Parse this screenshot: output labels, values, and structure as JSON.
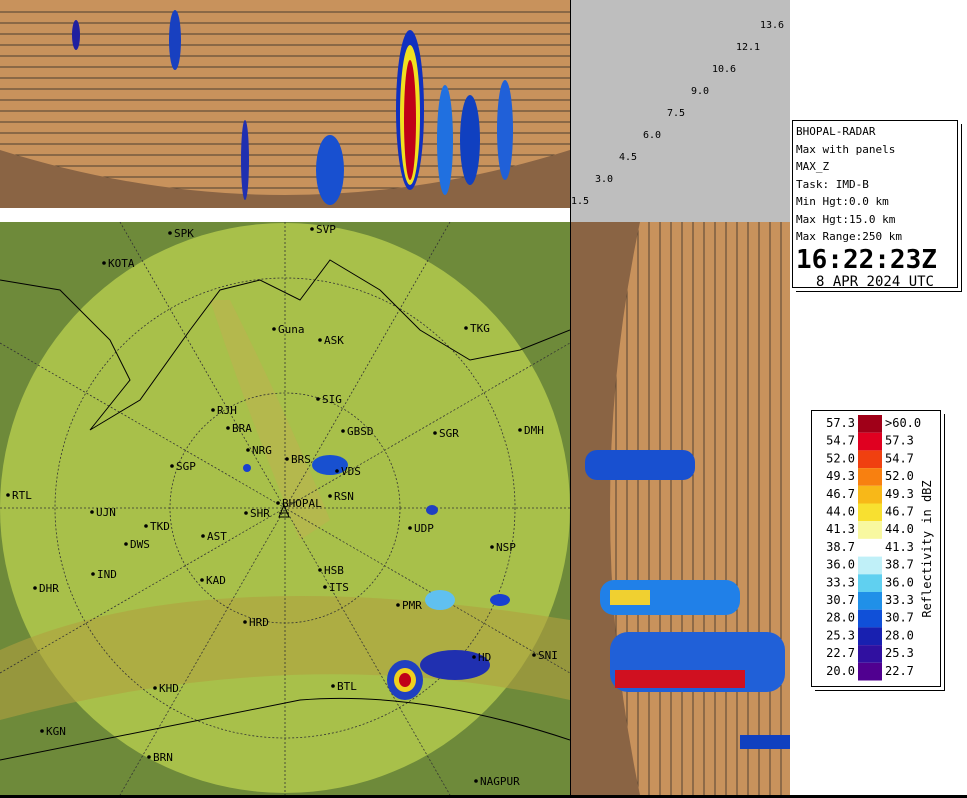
{
  "heights": [
    "13.6",
    "12.1",
    "10.6",
    "9.0",
    "7.5",
    "6.0",
    "4.5",
    "3.0",
    "1.5"
  ],
  "info": {
    "lines": [
      "BHOPAL-RADAR",
      "Max with panels",
      "MAX_Z",
      "Task: IMD-B",
      "Min Hgt:0.0 km",
      "Max Hgt:15.0 km",
      "Max Range:250 km"
    ],
    "time": "16:22:23Z",
    "date": "8 APR 2024 UTC"
  },
  "legend": {
    "title": "Reflectivity in dBZ",
    "low": [
      "57.3",
      "54.7",
      "52.0",
      "49.3",
      "46.7",
      "44.0",
      "41.3",
      "38.7",
      "36.0",
      "33.3",
      "30.7",
      "28.0",
      "25.3",
      "22.7",
      "20.0"
    ],
    "high": [
      ">60.0",
      "57.3",
      "54.7",
      "52.0",
      "49.3",
      "46.7",
      "44.0",
      "41.3",
      "38.7",
      "36.0",
      "33.3",
      "30.7",
      "28.0",
      "25.3",
      "22.7"
    ],
    "colors": [
      "#a00018",
      "#e00020",
      "#f04010",
      "#f88010",
      "#f8b818",
      "#f8e030",
      "#f8f8a0",
      "#ffffff",
      "#c0f0f8",
      "#60d0f0",
      "#2090e8",
      "#1050d8",
      "#1820b0",
      "#3010a0",
      "#500090"
    ]
  },
  "places": [
    "SPK",
    "SVP",
    "KOTA",
    "Guna",
    "ASK",
    "TKG",
    "SIG",
    "RJH",
    "BRA",
    "GBSD",
    "SGR",
    "DMH",
    "NRG",
    "BRS",
    "VDS",
    "SGP",
    "RSN",
    "RTL",
    "SHR",
    "BHOPAL",
    "UJN",
    "TKD",
    "UDP",
    "AST",
    "DWS",
    "NSP",
    "IND",
    "HSB",
    "DHR",
    "KAD",
    "ITS",
    "PMR",
    "HRD",
    "HD",
    "SNI",
    "KHD",
    "BTL",
    "KGN",
    "BRN",
    "NAGPUR"
  ]
}
